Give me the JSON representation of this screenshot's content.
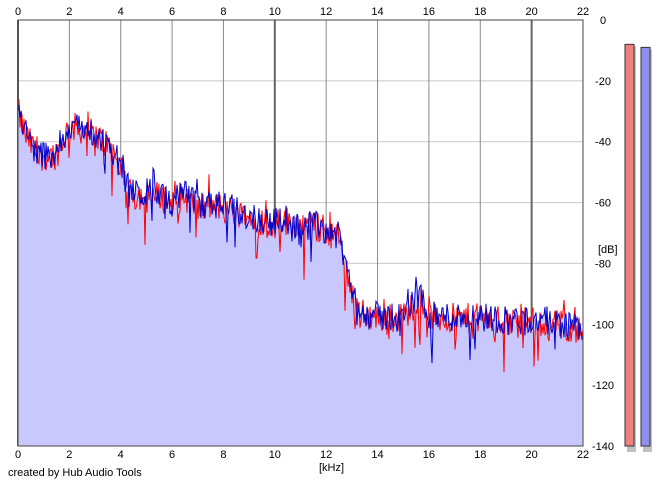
{
  "credit": "created by Hub Audio Tools",
  "chart_data": {
    "type": "area",
    "xlabel": "[kHz]",
    "ylabel": "[dB]",
    "xlim": [
      0,
      22
    ],
    "ylim": [
      -140,
      0
    ],
    "grid": true,
    "x_ticks": [
      "0",
      "2",
      "4",
      "6",
      "8",
      "10",
      "12",
      "14",
      "16",
      "18",
      "20",
      "22"
    ],
    "y_ticks": [
      "0",
      "-20",
      "-40",
      "-60",
      "-80",
      "-100",
      "-120",
      "-140"
    ],
    "colors": {
      "fill": "#c8c8ff",
      "left_channel": "#ff0000",
      "right_channel": "#0000cc",
      "left_meter": "#f08080",
      "right_meter": "#9090f0",
      "grid_major": "#8a8a8a",
      "grid_minor": "#c8c8c8"
    },
    "envelope": {
      "x": [
        0,
        0.3,
        0.8,
        1.5,
        2.0,
        2.5,
        3.0,
        3.5,
        4.0,
        4.5,
        5.0,
        5.5,
        6.0,
        6.5,
        7.0,
        7.5,
        8.0,
        8.5,
        9.0,
        9.5,
        10.0,
        10.5,
        11.0,
        11.5,
        12.0,
        12.5,
        12.8,
        13.2,
        14.0,
        15.0,
        15.7,
        16.0,
        17.0,
        18.0,
        19.0,
        20.0,
        21.0,
        22.0
      ],
      "y": [
        -30,
        -38,
        -45,
        -44,
        -35,
        -36,
        -38,
        -41,
        -48,
        -58,
        -57,
        -58,
        -60,
        -58,
        -62,
        -61,
        -62,
        -63,
        -65,
        -66,
        -67,
        -66,
        -68,
        -68,
        -69,
        -72,
        -82,
        -96,
        -98,
        -98,
        -90,
        -98,
        -98,
        -98,
        -99,
        -99,
        -100,
        -102
      ]
    },
    "level_meters": [
      {
        "channel": "L",
        "top_db": -8
      },
      {
        "channel": "R",
        "top_db": -9
      }
    ]
  }
}
